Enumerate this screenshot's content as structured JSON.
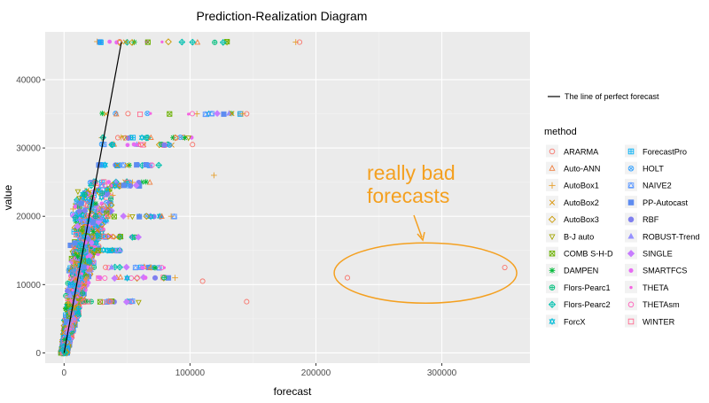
{
  "chart_data": {
    "type": "scatter",
    "title": "Prediction-Realization Diagram",
    "xlabel": "forecast",
    "ylabel": "value",
    "xlim": [
      -15000,
      370000
    ],
    "ylim": [
      -1500,
      47000
    ],
    "xticks": [
      0,
      100000,
      200000,
      300000
    ],
    "xtick_labels": [
      "0",
      "100000",
      "200000",
      "300000"
    ],
    "yticks": [
      0,
      10000,
      20000,
      30000,
      40000
    ],
    "ytick_labels": [
      "0",
      "10000",
      "20000",
      "30000",
      "40000"
    ],
    "grid": true,
    "reference_line": {
      "label": "The line of perfect forecast",
      "x": [
        0,
        45500
      ],
      "y": [
        0,
        45500
      ]
    },
    "legend_title": "method",
    "legend_position": "right",
    "methods": [
      {
        "name": "ARARMA",
        "color": "#f8766d",
        "marker": "circle-open"
      },
      {
        "name": "Auto-ANN",
        "color": "#f07f3f",
        "marker": "triangle-open"
      },
      {
        "name": "AutoBox1",
        "color": "#e6a02f",
        "marker": "plus"
      },
      {
        "name": "AutoBox2",
        "color": "#d89000",
        "marker": "cross"
      },
      {
        "name": "AutoBox3",
        "color": "#c99800",
        "marker": "diamond-open"
      },
      {
        "name": "B-J auto",
        "color": "#a3a500",
        "marker": "triangle-down-open"
      },
      {
        "name": "COMB S-H-D",
        "color": "#6bb100",
        "marker": "square-cross"
      },
      {
        "name": "DAMPEN",
        "color": "#00ba38",
        "marker": "asterisk"
      },
      {
        "name": "Flors-Pearc1",
        "color": "#00bf7d",
        "marker": "circle-plus"
      },
      {
        "name": "Flors-Pearc2",
        "color": "#00c0af",
        "marker": "diamond-plus"
      },
      {
        "name": "ForcX",
        "color": "#00bcd8",
        "marker": "star-of-david"
      },
      {
        "name": "ForecastPro",
        "color": "#00b0f6",
        "marker": "square-plus"
      },
      {
        "name": "HOLT",
        "color": "#35a2ff",
        "marker": "circle-cross"
      },
      {
        "name": "NAIVE2",
        "color": "#619cff",
        "marker": "square-triangle"
      },
      {
        "name": "PP-Autocast",
        "color": "#5e8cf0",
        "marker": "square"
      },
      {
        "name": "RBF",
        "color": "#7f7fef",
        "marker": "circle"
      },
      {
        "name": "ROBUST-Trend",
        "color": "#9590ff",
        "marker": "triangle"
      },
      {
        "name": "SINGLE",
        "color": "#c77cff",
        "marker": "diamond"
      },
      {
        "name": "SMARTFCS",
        "color": "#e76bf3",
        "marker": "circle-small"
      },
      {
        "name": "THETA",
        "color": "#f564e3",
        "marker": "dot"
      },
      {
        "name": "THETAsm",
        "color": "#ff62bc",
        "marker": "circle-open"
      },
      {
        "name": "WINTER",
        "color": "#ff6c91",
        "marker": "square-open"
      }
    ],
    "highlighted_points": [
      {
        "method": "ARARMA",
        "x": 225000,
        "y": 11000
      },
      {
        "method": "ARARMA",
        "x": 350000,
        "y": 12500
      }
    ],
    "annotation": {
      "lines": [
        "really bad",
        "forecasts"
      ],
      "color": "#f4a020",
      "target": "highlighted_points",
      "center": [
        287000,
        11700
      ]
    },
    "note": "Dense cloud of points for all methods near the origin (forecast 0-50000, value 0-25000); horizontal point strings at value ≈ 45500, 35000, 31500, 27500, 25000, 20000, 17000, 12500, 11000 extending to forecast ≈ 190000."
  }
}
